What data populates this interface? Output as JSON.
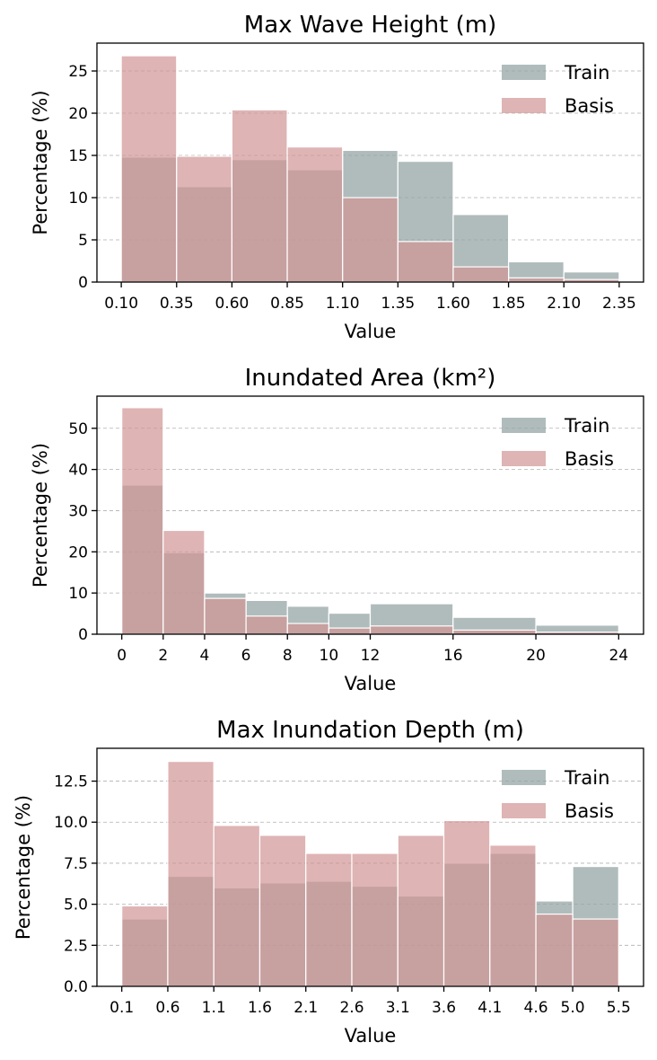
{
  "chart_data": [
    {
      "type": "bar",
      "title": "Max Wave Height (m)",
      "xlabel": "Value",
      "ylabel": "Percentage (%)",
      "bin_edges": [
        0.1,
        0.35,
        0.6,
        0.85,
        1.1,
        1.35,
        1.6,
        1.85,
        2.1,
        2.35
      ],
      "xticks": [
        "0.10",
        "0.35",
        "0.60",
        "0.85",
        "1.10",
        "1.35",
        "1.60",
        "1.85",
        "2.10",
        "2.35"
      ],
      "xlim": [
        -0.01,
        2.46
      ],
      "ylim": [
        0,
        28.3
      ],
      "yticks": [
        "0",
        "5",
        "10",
        "15",
        "20",
        "25"
      ],
      "ytick_values": [
        0,
        5,
        10,
        15,
        20,
        25
      ],
      "grid": "y-dashed",
      "legend_position": "top-right",
      "series": [
        {
          "name": "Train",
          "color": "#95a5a6",
          "values": [
            14.8,
            11.3,
            14.5,
            13.3,
            15.6,
            14.3,
            8.0,
            2.4,
            1.2
          ]
        },
        {
          "name": "Basis",
          "color": "#d19494",
          "values": [
            26.8,
            14.9,
            20.4,
            16.0,
            10.0,
            4.8,
            1.8,
            0.5,
            0.3
          ]
        }
      ]
    },
    {
      "type": "bar",
      "title": "Inundated Area (km²)",
      "xlabel": "Value",
      "ylabel": "Percentage (%)",
      "bin_edges": [
        0,
        2,
        4,
        6,
        8,
        10,
        12,
        16,
        20,
        24
      ],
      "xticks": [
        "0",
        "2",
        "4",
        "6",
        "8",
        "10",
        "12",
        "16",
        "20",
        "24"
      ],
      "xlim": [
        -1.2,
        25.2
      ],
      "ylim": [
        0,
        57.8
      ],
      "yticks": [
        "0",
        "10",
        "20",
        "30",
        "40",
        "50"
      ],
      "ytick_values": [
        0,
        10,
        20,
        30,
        40,
        50
      ],
      "grid": "y-dashed",
      "legend_position": "top-right",
      "series": [
        {
          "name": "Train",
          "color": "#95a5a6",
          "values": [
            36.2,
            19.8,
            10.0,
            8.2,
            6.8,
            5.1,
            7.4,
            4.1,
            2.2
          ]
        },
        {
          "name": "Basis",
          "color": "#d19494",
          "values": [
            55.0,
            25.2,
            8.7,
            4.4,
            2.6,
            1.5,
            2.0,
            1.0,
            0.5
          ]
        }
      ]
    },
    {
      "type": "bar",
      "title": "Max Inundation Depth (m)",
      "xlabel": "Value",
      "ylabel": "Percentage (%)",
      "bin_edges": [
        0.1,
        0.6,
        1.1,
        1.6,
        2.1,
        2.6,
        3.1,
        3.6,
        4.1,
        4.6,
        5.0,
        5.5
      ],
      "xticks": [
        "0.1",
        "0.6",
        "1.1",
        "1.6",
        "2.1",
        "2.6",
        "3.1",
        "3.6",
        "4.1",
        "4.6",
        "5.0",
        "5.5"
      ],
      "xlim": [
        -0.17,
        5.77
      ],
      "ylim": [
        0,
        14.5
      ],
      "yticks": [
        "0.0",
        "2.5",
        "5.0",
        "7.5",
        "10.0",
        "12.5"
      ],
      "ytick_values": [
        0,
        2.5,
        5,
        7.5,
        10,
        12.5
      ],
      "grid": "y-dashed",
      "legend_position": "top-right",
      "series": [
        {
          "name": "Train",
          "color": "#95a5a6",
          "values": [
            4.1,
            6.7,
            6.0,
            6.3,
            6.4,
            6.1,
            5.5,
            7.5,
            8.1,
            5.2,
            7.3
          ]
        },
        {
          "name": "Basis",
          "color": "#d19494",
          "values": [
            4.9,
            13.7,
            9.8,
            9.2,
            8.1,
            8.1,
            9.2,
            10.1,
            8.6,
            4.4,
            4.1
          ]
        }
      ]
    }
  ]
}
